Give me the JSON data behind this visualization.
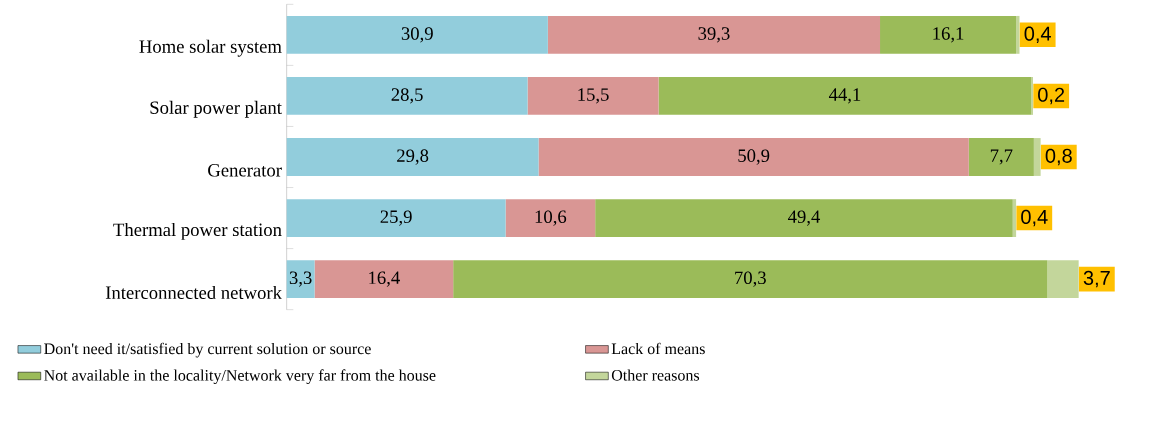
{
  "chart_data": {
    "type": "bar",
    "orientation": "horizontal",
    "stacked": true,
    "legend": "bottom",
    "categories": [
      "Home solar system",
      "Solar power plant",
      "Generator",
      "Thermal power station",
      "Interconnected network"
    ],
    "series": [
      {
        "name": "Don't need it/satisfied by current solution or source",
        "color": "#92cddc",
        "values": [
          30.9,
          28.5,
          29.8,
          25.9,
          3.3
        ],
        "value_labels": [
          "30,9",
          "28,5",
          "29,8",
          "25,9",
          "3,3"
        ]
      },
      {
        "name": "Lack of means",
        "color": "#d99694",
        "values": [
          39.3,
          15.5,
          50.9,
          10.6,
          16.4
        ],
        "value_labels": [
          "39,3",
          "15,5",
          "50,9",
          "10,6",
          "16,4"
        ]
      },
      {
        "name": "Not available in the locality/Network very far from the house",
        "color": "#9bbb59",
        "values": [
          16.1,
          44.1,
          7.7,
          49.4,
          70.3
        ],
        "value_labels": [
          "16,1",
          "44,1",
          "7,7",
          "49,4",
          "70,3"
        ]
      },
      {
        "name": "Other reasons",
        "color": "#c3d69b",
        "values": [
          0.4,
          0.2,
          0.8,
          0.4,
          3.7
        ],
        "value_labels": [
          "0,4",
          "0,2",
          "0,8",
          "0,4",
          "3,7"
        ]
      }
    ]
  }
}
